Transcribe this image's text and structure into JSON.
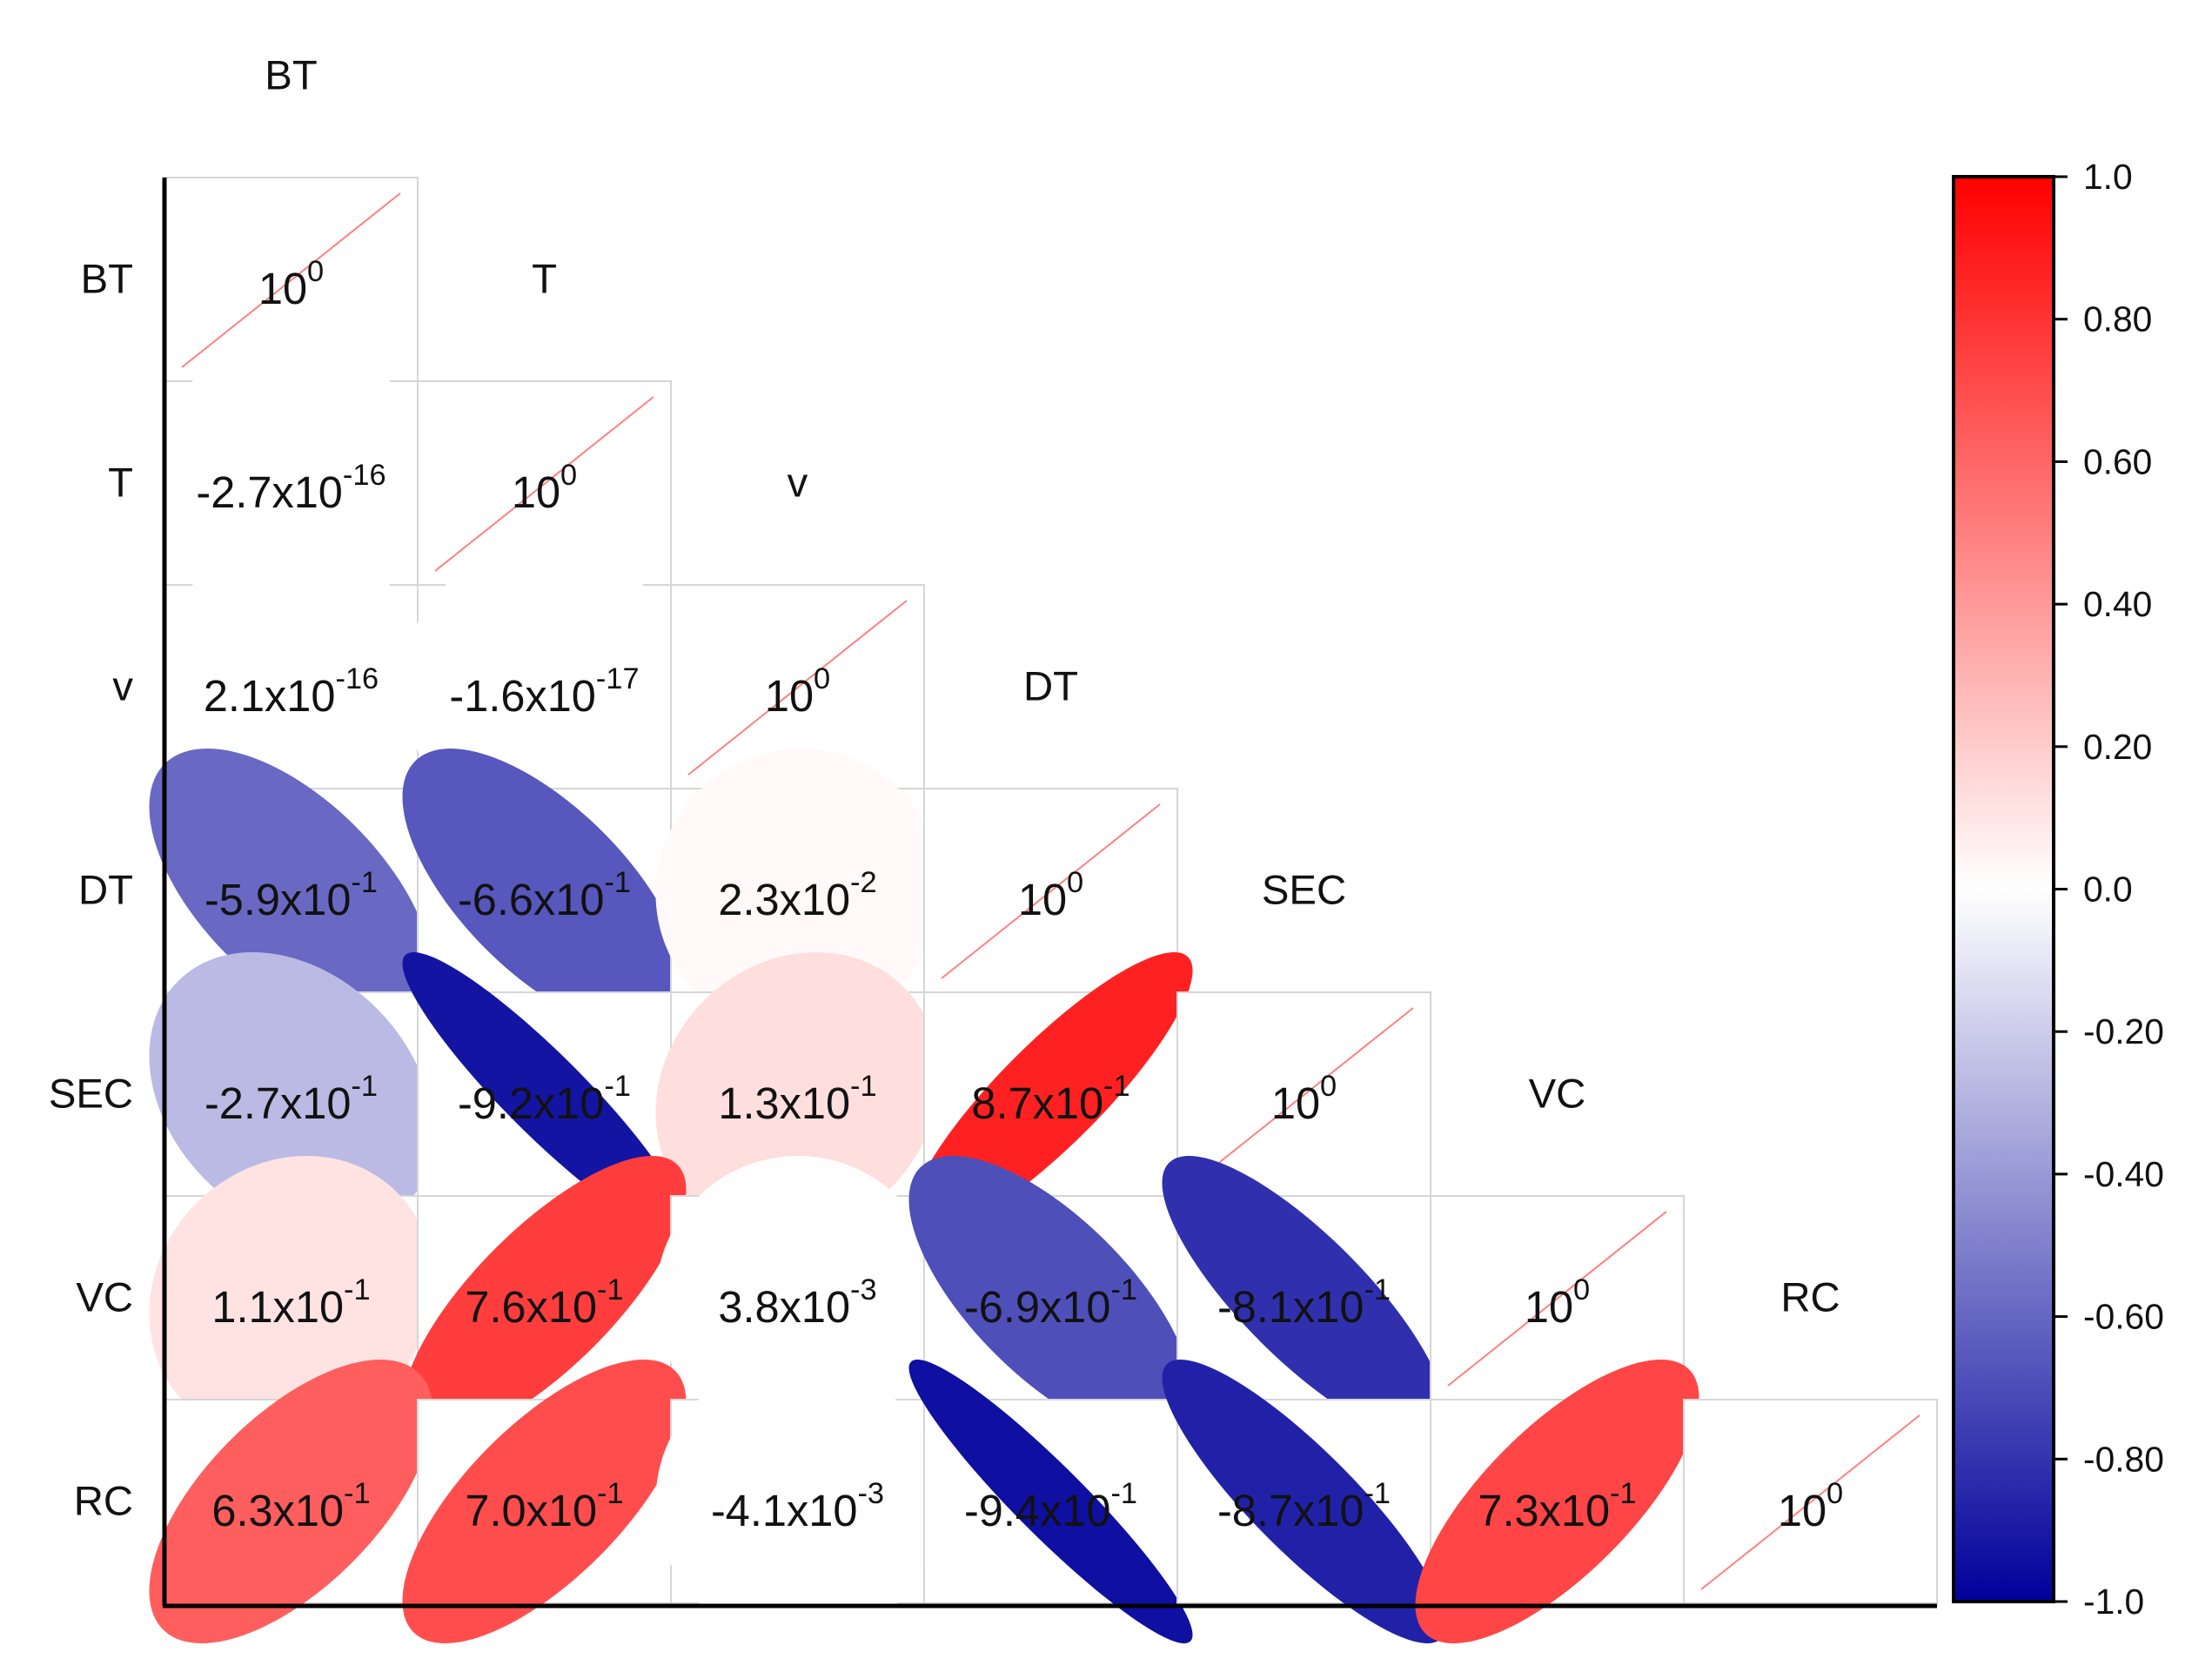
{
  "chart_data": {
    "type": "heatmap",
    "variables": [
      "BT",
      "T",
      "v",
      "DT",
      "SEC",
      "VC",
      "RC"
    ],
    "layout": "lower-triangle correlation matrix with ellipse glyphs",
    "diagonal_label": {
      "base": "10",
      "exp": "0"
    },
    "matrix": [
      [
        {
          "v": 1.0
        },
        null,
        null,
        null,
        null,
        null,
        null
      ],
      [
        {
          "v": -2.7e-16,
          "m": "-2.7",
          "e": "-16"
        },
        {
          "v": 1.0
        },
        null,
        null,
        null,
        null,
        null
      ],
      [
        {
          "v": 2.1e-16,
          "m": "2.1",
          "e": "-16"
        },
        {
          "v": -1.6e-17,
          "m": "-1.6",
          "e": "-17"
        },
        {
          "v": 1.0
        },
        null,
        null,
        null,
        null
      ],
      [
        {
          "v": -0.59,
          "m": "-5.9",
          "e": "-1"
        },
        {
          "v": -0.66,
          "m": "-6.6",
          "e": "-1"
        },
        {
          "v": 0.023,
          "m": "2.3",
          "e": "-2"
        },
        {
          "v": 1.0
        },
        null,
        null,
        null
      ],
      [
        {
          "v": -0.27,
          "m": "-2.7",
          "e": "-1"
        },
        {
          "v": -0.92,
          "m": "-9.2",
          "e": "-1"
        },
        {
          "v": 0.13,
          "m": "1.3",
          "e": "-1"
        },
        {
          "v": 0.87,
          "m": "8.7",
          "e": "-1"
        },
        {
          "v": 1.0
        },
        null,
        null
      ],
      [
        {
          "v": 0.11,
          "m": "1.1",
          "e": "-1"
        },
        {
          "v": 0.76,
          "m": "7.6",
          "e": "-1"
        },
        {
          "v": 0.0038,
          "m": "3.8",
          "e": "-3"
        },
        {
          "v": -0.69,
          "m": "-6.9",
          "e": "-1"
        },
        {
          "v": -0.81,
          "m": "-8.1",
          "e": "-1"
        },
        {
          "v": 1.0
        },
        null
      ],
      [
        {
          "v": 0.63,
          "m": "6.3",
          "e": "-1"
        },
        {
          "v": 0.7,
          "m": "7.0",
          "e": "-1"
        },
        {
          "v": -0.0041,
          "m": "-4.1",
          "e": "-3"
        },
        {
          "v": -0.94,
          "m": "-9.4",
          "e": "-1"
        },
        {
          "v": -0.87,
          "m": "-8.7",
          "e": "-1"
        },
        {
          "v": 0.73,
          "m": "7.3",
          "e": "-1"
        },
        {
          "v": 1.0
        }
      ]
    ],
    "colorbar": {
      "range": [
        -1.0,
        1.0
      ],
      "ticks": [
        "1.0",
        "0.80",
        "0.60",
        "0.40",
        "0.20",
        "0.0",
        "-0.20",
        "-0.40",
        "-0.60",
        "-0.80",
        "-1.0"
      ],
      "colors": {
        "negative": "#00009b",
        "zero": "#ffffff",
        "positive": "#ff0000"
      }
    },
    "diagonal_line_color": "#ff8080",
    "cell_border_color": "#d6d6d6"
  }
}
